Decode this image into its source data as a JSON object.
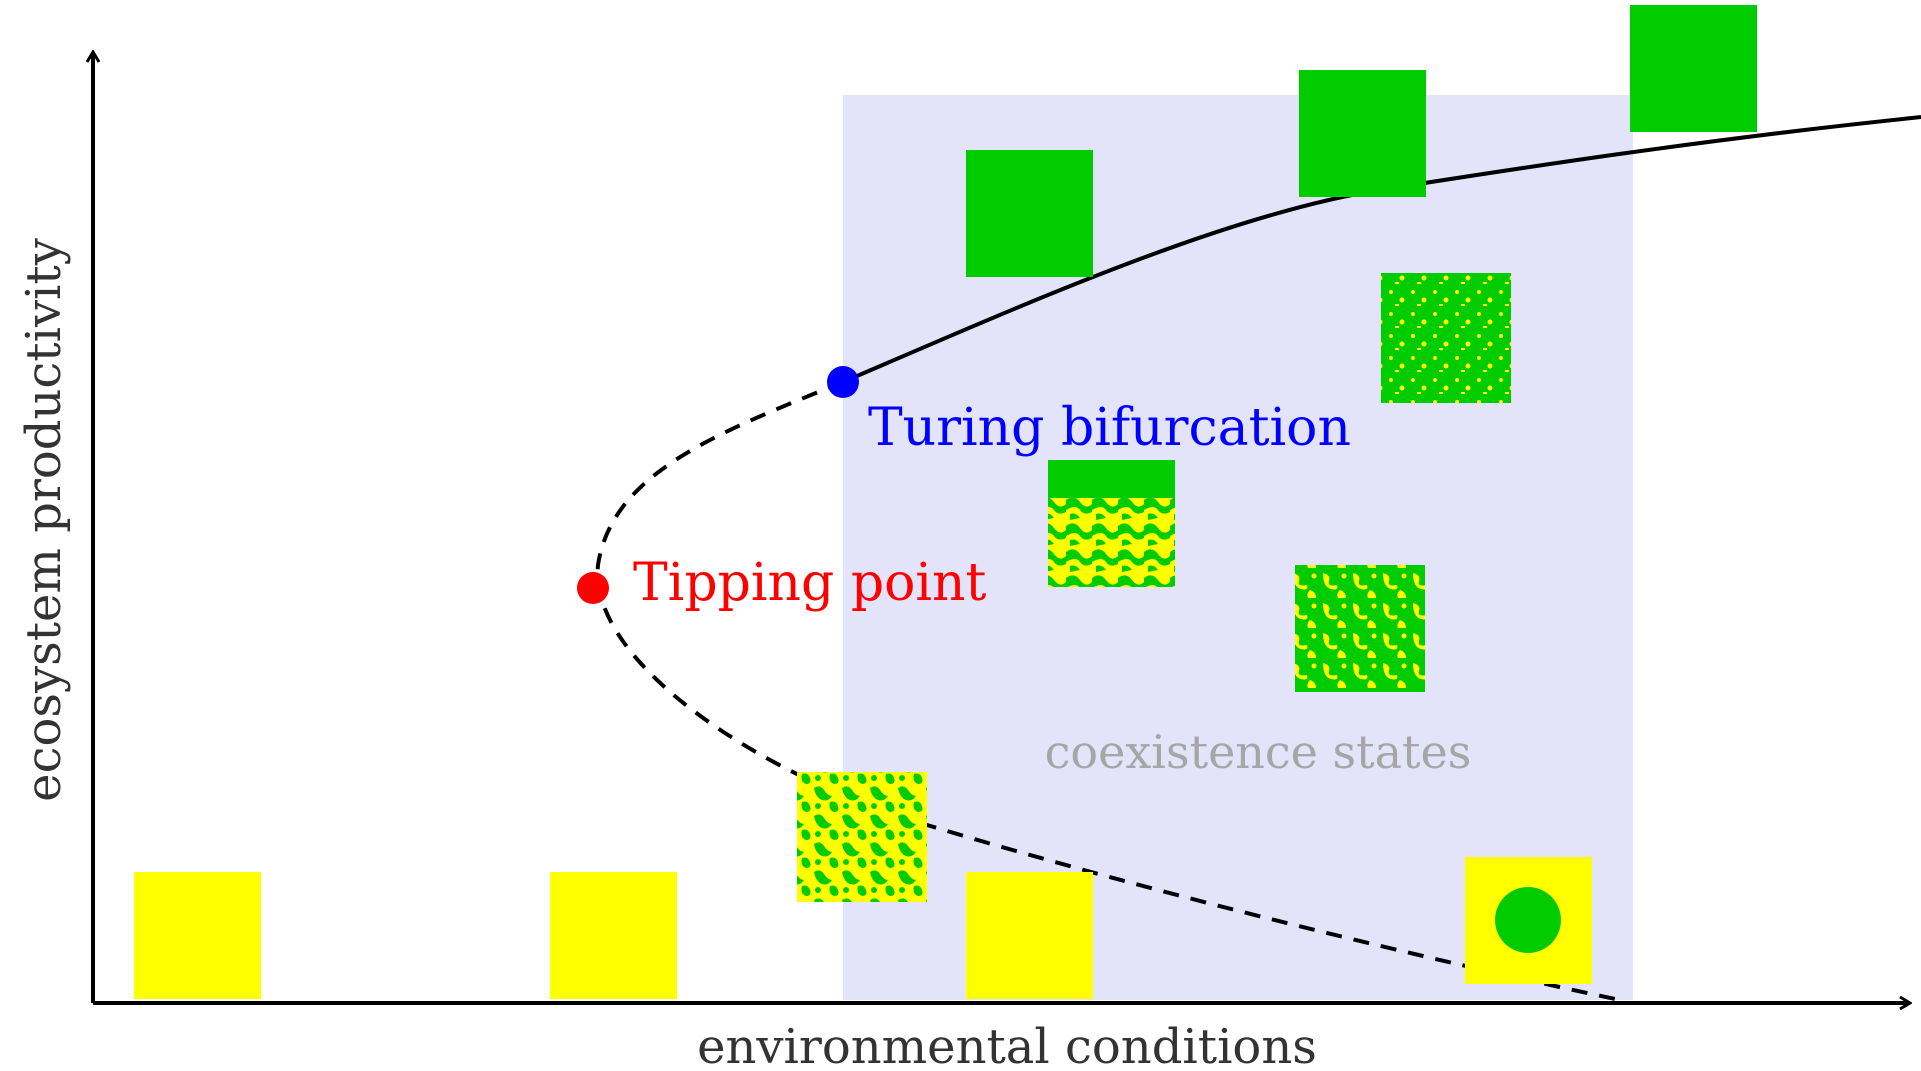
{
  "axes": {
    "xlabel": "environmental conditions",
    "ylabel": "ecosystem productivity"
  },
  "labels": {
    "turing": "Turing bifurcation",
    "tipping": "Tipping point",
    "coexistence": "coexistence states"
  },
  "colors": {
    "vegetation": "#00cc00",
    "bare_soil": "#ffff00",
    "turing_point": "#0000ff",
    "tipping_point": "#ff0000",
    "coexistence_region": "#e3e4fa",
    "coexistence_text": "#a6a6a6",
    "curve": "#000000"
  },
  "states": {
    "bare": "bare soil state",
    "vegetated": "uniform vegetation state",
    "patterned_gaps": "gap pattern",
    "patterned_labyrinth": "labyrinth pattern",
    "patterned_spots": "spot pattern",
    "patterned_single_spot": "single spot"
  }
}
